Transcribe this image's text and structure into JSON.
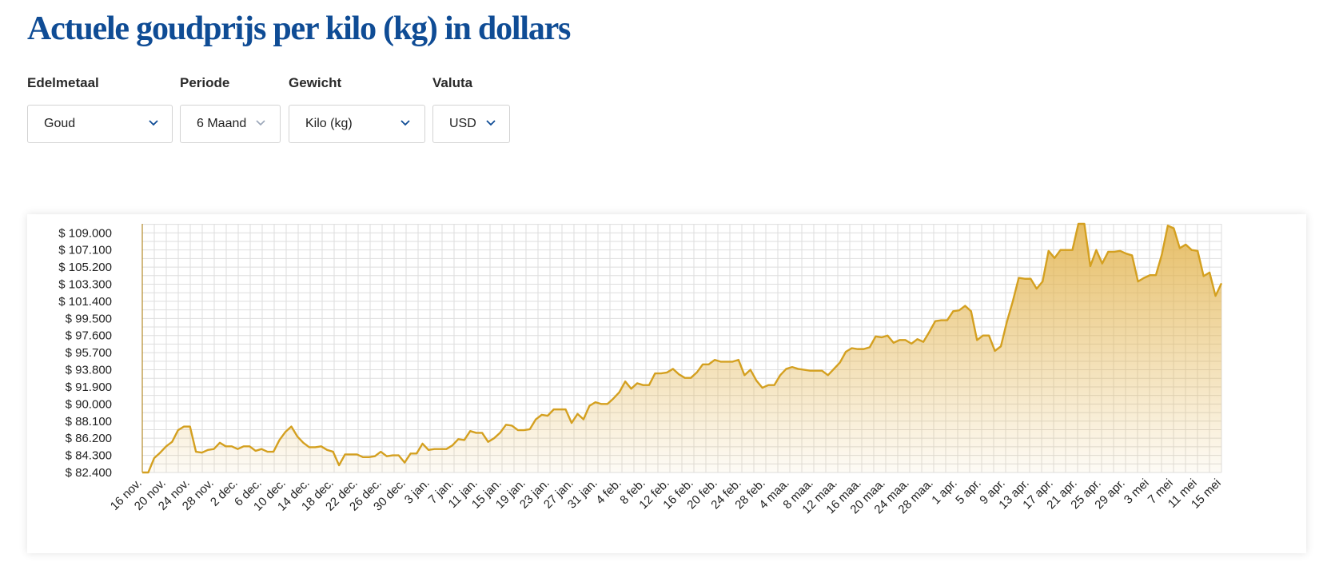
{
  "page": {
    "title": "Actuele goudprijs per kilo (kg) in dollars"
  },
  "filters": [
    {
      "label": "Edelmetaal",
      "value": "Goud"
    },
    {
      "label": "Periode",
      "value": "6 Maand"
    },
    {
      "label": "Gewicht",
      "value": "Kilo (kg)"
    },
    {
      "label": "Valuta",
      "value": "USD"
    }
  ],
  "colors": {
    "title": "#0f4c95",
    "line": "#d4a020",
    "fill": "#e2b24a",
    "grid": "#dedede",
    "chevron": "#0f4c95"
  },
  "icons": {
    "dropdown": "chevron-down-icon"
  },
  "chart_data": {
    "type": "area",
    "title": "",
    "xlabel": "",
    "ylabel": "",
    "grid": true,
    "ylim": [
      82400,
      110000
    ],
    "y_ticks": [
      "$ 82.400",
      "$ 84.300",
      "$ 86.200",
      "$ 88.100",
      "$ 90.000",
      "$ 91.900",
      "$ 93.800",
      "$ 95.700",
      "$ 97.600",
      "$ 99.500",
      "$ 101.400",
      "$ 103.300",
      "$ 105.200",
      "$ 107.100",
      "$ 109.000"
    ],
    "y_tick_values": [
      82400,
      84300,
      86200,
      88100,
      90000,
      91900,
      93800,
      95700,
      97600,
      99500,
      101400,
      103300,
      105200,
      107100,
      109000
    ],
    "x_ticks": [
      "16 nov.",
      "20 nov.",
      "24 nov.",
      "28 nov.",
      "2 dec.",
      "6 dec.",
      "10 dec.",
      "14 dec.",
      "18 dec.",
      "22 dec.",
      "26 dec.",
      "30 dec.",
      "3 jan.",
      "7 jan.",
      "11 jan.",
      "15 jan.",
      "19 jan.",
      "23 jan.",
      "27 jan.",
      "31 jan.",
      "4 feb.",
      "8 feb.",
      "12 feb.",
      "16 feb.",
      "20 feb.",
      "24 feb.",
      "28 feb.",
      "4 maa.",
      "8 maa.",
      "12 maa.",
      "16 maa.",
      "20 maa.",
      "24 maa.",
      "28 maa.",
      "1 apr.",
      "5 apr.",
      "9 apr.",
      "13 apr.",
      "17 apr.",
      "21 apr.",
      "25 apr.",
      "29 apr.",
      "3 mei",
      "7 mei",
      "11 mei",
      "15 mei"
    ],
    "values": [
      82400,
      82400,
      84000,
      84600,
      85300,
      85800,
      87100,
      87500,
      87500,
      84700,
      84600,
      84900,
      85000,
      85700,
      85300,
      85300,
      85000,
      85300,
      85300,
      84800,
      85000,
      84700,
      84700,
      86000,
      86900,
      87500,
      86400,
      85700,
      85200,
      85200,
      85300,
      84900,
      84700,
      83200,
      84400,
      84400,
      84400,
      84100,
      84100,
      84200,
      84700,
      84200,
      84300,
      84300,
      83500,
      84500,
      84500,
      85600,
      84900,
      85000,
      85000,
      85000,
      85400,
      86100,
      86000,
      87000,
      86800,
      86800,
      85800,
      86200,
      86800,
      87700,
      87600,
      87100,
      87100,
      87200,
      88300,
      88800,
      88700,
      89400,
      89400,
      89400,
      87900,
      88900,
      88300,
      89800,
      90200,
      90000,
      90000,
      90600,
      91300,
      92500,
      91700,
      92300,
      92100,
      92100,
      93400,
      93400,
      93500,
      93900,
      93300,
      92900,
      92900,
      93500,
      94400,
      94400,
      94900,
      94700,
      94700,
      94700,
      94900,
      93200,
      93800,
      92600,
      91800,
      92100,
      92100,
      93200,
      93900,
      94100,
      93900,
      93800,
      93700,
      93700,
      93700,
      93200,
      93900,
      94600,
      95800,
      96200,
      96100,
      96100,
      96300,
      97500,
      97400,
      97600,
      96800,
      97100,
      97100,
      96700,
      97200,
      96900,
      98000,
      99200,
      99300,
      99300,
      100300,
      100400,
      100900,
      100300,
      97100,
      97600,
      97600,
      95900,
      96400,
      99100,
      101400,
      104000,
      103900,
      103900,
      102800,
      103600,
      107000,
      106200,
      107100,
      107100,
      107100,
      110000,
      110000,
      105300,
      107100,
      105600,
      106900,
      106900,
      107000,
      106700,
      106500,
      103600,
      104000,
      104300,
      104300,
      106600,
      109800,
      109500,
      107300,
      107700,
      107100,
      107000,
      104200,
      104600,
      102000,
      103400
    ]
  }
}
